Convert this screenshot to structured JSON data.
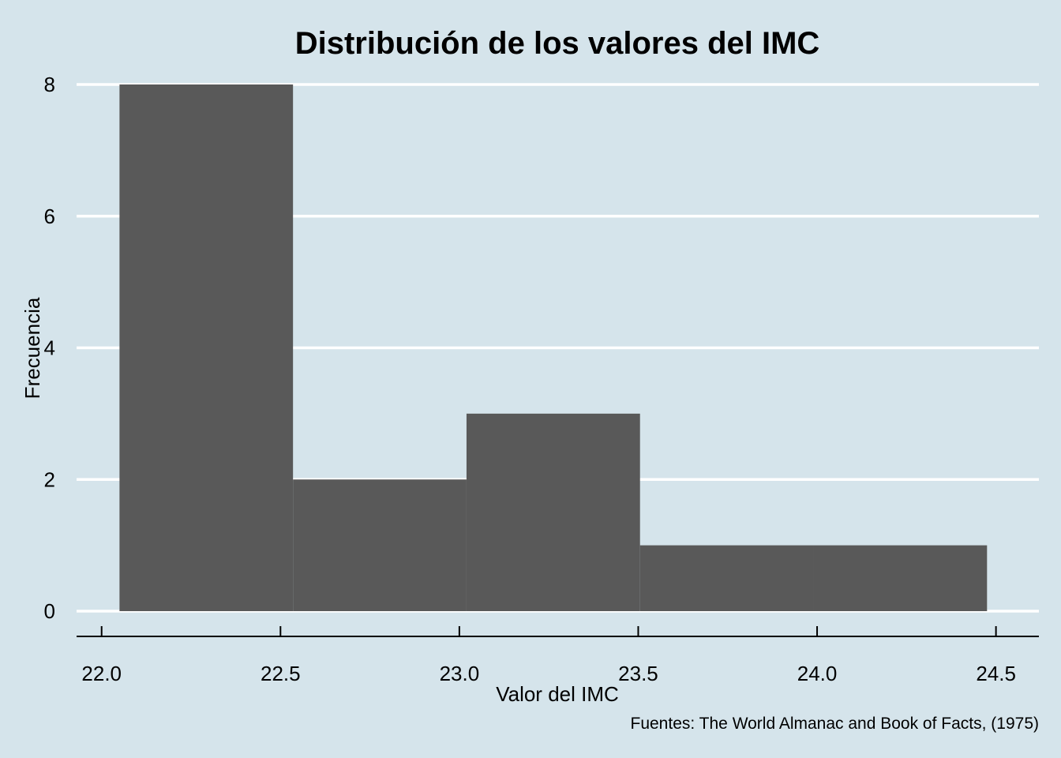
{
  "chart_data": {
    "type": "bar",
    "subtype": "histogram",
    "title": "Distribución de los valores del IMC",
    "xlabel": "Valor del IMC",
    "ylabel": "Frecuencia",
    "caption": "Fuentes: The World Almanac and Book of Facts, (1975)",
    "xlim": [
      21.93,
      24.62
    ],
    "ylim": [
      0,
      8
    ],
    "x_ticks": [
      22.0,
      22.5,
      23.0,
      23.5,
      24.0,
      24.5
    ],
    "x_tick_labels": [
      "22.0",
      "22.5",
      "23.0",
      "23.5",
      "24.0",
      "24.5"
    ],
    "y_ticks": [
      0,
      2,
      4,
      6,
      8
    ],
    "y_tick_labels": [
      "0",
      "2",
      "4",
      "6",
      "8"
    ],
    "bins": [
      {
        "x0": 22.05,
        "x1": 22.535,
        "count": 8
      },
      {
        "x0": 22.535,
        "x1": 23.02,
        "count": 2
      },
      {
        "x0": 23.02,
        "x1": 23.505,
        "count": 3
      },
      {
        "x0": 23.505,
        "x1": 23.99,
        "count": 1
      },
      {
        "x0": 23.99,
        "x1": 24.475,
        "count": 1
      }
    ],
    "grid": {
      "horizontal": true,
      "vertical": false
    },
    "legend": "none",
    "colors": {
      "background": "#d5e4eb",
      "bar_fill": "#595959",
      "gridline": "#ffffff",
      "axis_line": "#000000"
    }
  }
}
